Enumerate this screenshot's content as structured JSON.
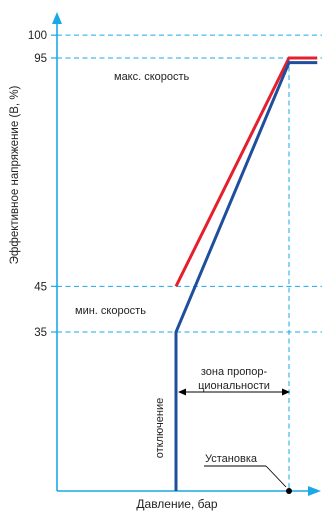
{
  "chart_data": {
    "type": "line",
    "ylabel": "Эффективное напряжение (В, %)",
    "xlabel": "Давление, бар",
    "y_ticks": [
      100,
      95,
      45,
      35
    ],
    "ylim": [
      0,
      100
    ],
    "grid": "dashed reference lines",
    "series": [
      {
        "color": "#e5202e",
        "points": [
          [
            0,
            45
          ],
          [
            1,
            95
          ],
          [
            1.25,
            95
          ]
        ]
      },
      {
        "color": "#1f4e9c",
        "points": [
          [
            0,
            0
          ],
          [
            0,
            35
          ],
          [
            1,
            94
          ],
          [
            1.25,
            94
          ]
        ]
      }
    ],
    "annotations": {
      "max_speed": "макс. скорость",
      "min_speed": "мин. скорость",
      "cutoff": "отключение",
      "prop_zone_line1": "зона пропор-",
      "prop_zone_line2": "циональности",
      "setpoint": "Установка"
    }
  },
  "colors": {
    "axis": "#1aa9e6",
    "guide": "#1aa9e6",
    "red": "#e5202e",
    "blue": "#1f4e9c",
    "text": "#231f20"
  }
}
